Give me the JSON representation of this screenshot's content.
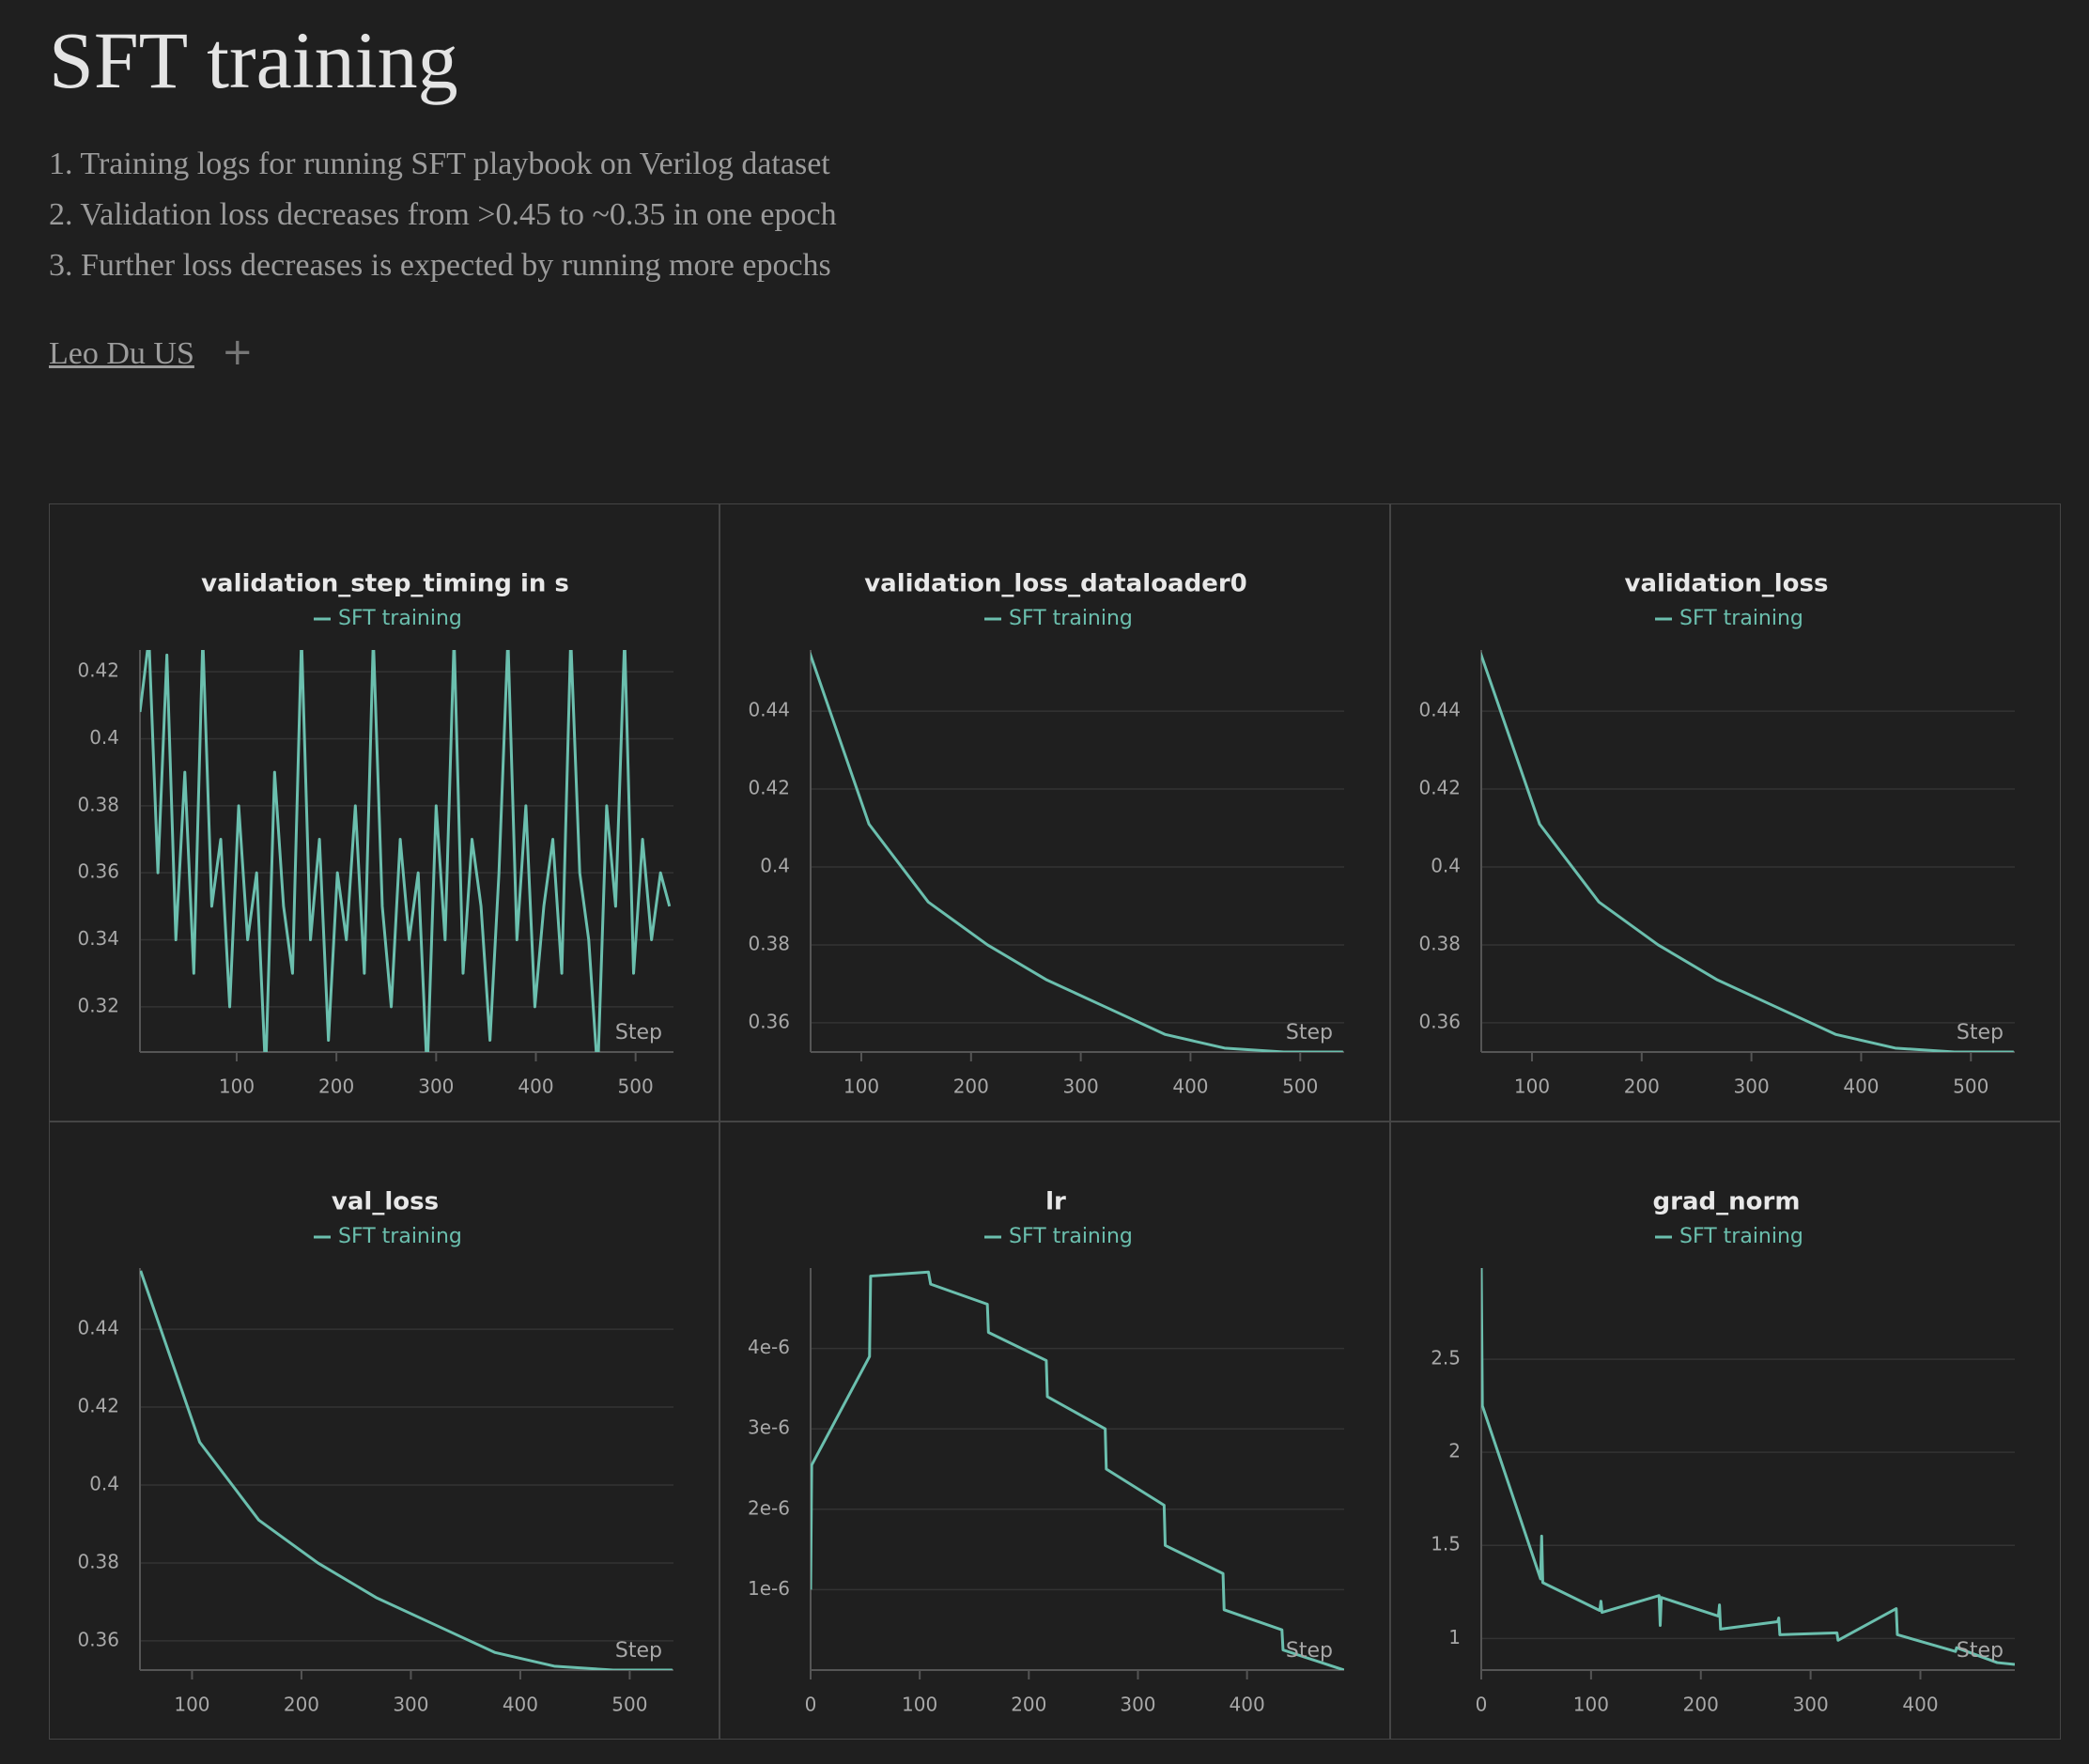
{
  "header": {
    "title": "SFT training",
    "description": [
      "1. Training logs for running SFT playbook on Verilog dataset",
      "2. Validation loss decreases from >0.45 to ~0.35 in one epoch",
      "3. Further loss decreases is expected by running more epochs"
    ],
    "author": "Leo Du US"
  },
  "chart_data": [
    {
      "type": "line",
      "title": "validation_step_timing in s",
      "xlabel": "Step",
      "x": [
        3,
        12,
        21,
        30,
        39,
        48,
        57,
        66,
        75,
        84,
        93,
        102,
        111,
        120,
        129,
        138,
        147,
        156,
        165,
        174,
        183,
        192,
        201,
        210,
        219,
        228,
        237,
        246,
        255,
        264,
        273,
        282,
        291,
        300,
        309,
        318,
        327,
        336,
        345,
        354,
        363,
        372,
        381,
        390,
        399,
        408,
        417,
        426,
        435,
        444,
        453,
        462,
        471,
        480,
        489,
        498,
        507,
        516,
        525,
        534
      ],
      "series": [
        {
          "name": "SFT training",
          "color": "#6bbfae",
          "values": [
            0.408,
            0.43,
            0.36,
            0.425,
            0.34,
            0.39,
            0.33,
            0.43,
            0.35,
            0.37,
            0.32,
            0.38,
            0.34,
            0.36,
            0.3,
            0.39,
            0.35,
            0.33,
            0.43,
            0.34,
            0.37,
            0.31,
            0.36,
            0.34,
            0.38,
            0.33,
            0.43,
            0.35,
            0.32,
            0.37,
            0.34,
            0.36,
            0.3,
            0.38,
            0.34,
            0.43,
            0.33,
            0.37,
            0.35,
            0.31,
            0.36,
            0.43,
            0.34,
            0.38,
            0.32,
            0.35,
            0.37,
            0.33,
            0.43,
            0.36,
            0.34,
            0.3,
            0.38,
            0.35,
            0.43,
            0.33,
            0.37,
            0.34,
            0.36,
            0.35
          ]
        }
      ],
      "xlim": [
        3,
        538
      ],
      "ylim": [
        0.3065,
        0.4265
      ],
      "xticks": [
        100,
        200,
        300,
        400,
        500
      ],
      "yticks": [
        0.32,
        0.34,
        0.36,
        0.38,
        0.4,
        0.42
      ],
      "grid": true
    },
    {
      "type": "line",
      "title": "validation_loss_dataloader0",
      "xlabel": "Step",
      "x": [
        53,
        107,
        161,
        215,
        269,
        323,
        377,
        431,
        485,
        539
      ],
      "series": [
        {
          "name": "SFT training",
          "color": "#6bbfae",
          "values": [
            0.455,
            0.411,
            0.391,
            0.38,
            0.371,
            0.364,
            0.357,
            0.3535,
            0.3525,
            0.3525
          ]
        }
      ],
      "xlim": [
        53.8,
        540
      ],
      "ylim": [
        0.3525,
        0.4557
      ],
      "xticks": [
        100,
        200,
        300,
        400,
        500
      ],
      "yticks": [
        0.36,
        0.38,
        0.4,
        0.42,
        0.44
      ],
      "grid": true
    },
    {
      "type": "line",
      "title": "validation_loss",
      "xlabel": "Step",
      "x": [
        53,
        107,
        161,
        215,
        269,
        323,
        377,
        431,
        485,
        539
      ],
      "series": [
        {
          "name": "SFT training",
          "color": "#6bbfae",
          "values": [
            0.455,
            0.411,
            0.391,
            0.38,
            0.371,
            0.364,
            0.357,
            0.3535,
            0.3525,
            0.3525
          ]
        }
      ],
      "xlim": [
        53.8,
        540
      ],
      "ylim": [
        0.3525,
        0.4557
      ],
      "xticks": [
        100,
        200,
        300,
        400,
        500
      ],
      "yticks": [
        0.36,
        0.38,
        0.4,
        0.42,
        0.44
      ],
      "grid": true
    },
    {
      "type": "line",
      "title": "val_loss",
      "xlabel": "Step",
      "x": [
        53,
        107,
        161,
        215,
        269,
        323,
        377,
        431,
        485,
        539
      ],
      "series": [
        {
          "name": "SFT training",
          "color": "#6bbfae",
          "values": [
            0.455,
            0.411,
            0.391,
            0.38,
            0.371,
            0.364,
            0.357,
            0.3535,
            0.3525,
            0.3525
          ]
        }
      ],
      "xlim": [
        52.4,
        540
      ],
      "ylim": [
        0.3525,
        0.4557
      ],
      "xticks": [
        100,
        200,
        300,
        400,
        500
      ],
      "yticks": [
        0.36,
        0.38,
        0.4,
        0.42,
        0.44
      ],
      "grid": true
    },
    {
      "type": "line",
      "title": "lr",
      "xlabel": "Step",
      "x": [
        0,
        1,
        54,
        55,
        108,
        110,
        162,
        163,
        216,
        217,
        270,
        271,
        324,
        325,
        378,
        379,
        432,
        433,
        489
      ],
      "series": [
        {
          "name": "SFT training",
          "color": "#6bbfae",
          "values": [
            1e-06,
            2.55e-06,
            3.9e-06,
            4.9e-06,
            4.95e-06,
            4.8e-06,
            4.55e-06,
            4.2e-06,
            3.85e-06,
            3.4e-06,
            3e-06,
            2.5e-06,
            2.05e-06,
            1.55e-06,
            1.2e-06,
            7.5e-07,
            5e-07,
            2.5e-07,
            0
          ]
        }
      ],
      "xlim": [
        0,
        489
      ],
      "ylim": [
        0,
        5e-06
      ],
      "xticks": [
        0,
        100,
        200,
        300,
        400
      ],
      "yticks": [
        {
          "value": 1e-06,
          "label": "1e-6"
        },
        {
          "value": 2e-06,
          "label": "2e-6"
        },
        {
          "value": 3e-06,
          "label": "3e-6"
        },
        {
          "value": 4e-06,
          "label": "4e-6"
        }
      ],
      "grid": true
    },
    {
      "type": "line",
      "title": "grad_norm",
      "xlabel": "Step",
      "x": [
        0,
        1,
        54,
        55,
        56,
        108,
        109,
        110,
        162,
        163,
        164,
        216,
        217,
        218,
        270,
        271,
        272,
        324,
        325,
        378,
        379,
        432,
        433,
        470,
        486
      ],
      "series": [
        {
          "name": "SFT training",
          "color": "#6bbfae",
          "values": [
            2.99,
            2.25,
            1.32,
            1.55,
            1.3,
            1.15,
            1.2,
            1.14,
            1.23,
            1.07,
            1.22,
            1.12,
            1.18,
            1.05,
            1.09,
            1.11,
            1.02,
            1.03,
            0.99,
            1.16,
            1.02,
            0.93,
            0.95,
            0.87,
            0.86
          ]
        }
      ],
      "xlim": [
        0,
        486
      ],
      "ylim": [
        0.83,
        2.99
      ],
      "xticks": [
        0,
        100,
        200,
        300,
        400
      ],
      "yticks": [
        1,
        1.5,
        2,
        2.5
      ],
      "grid": true
    }
  ]
}
